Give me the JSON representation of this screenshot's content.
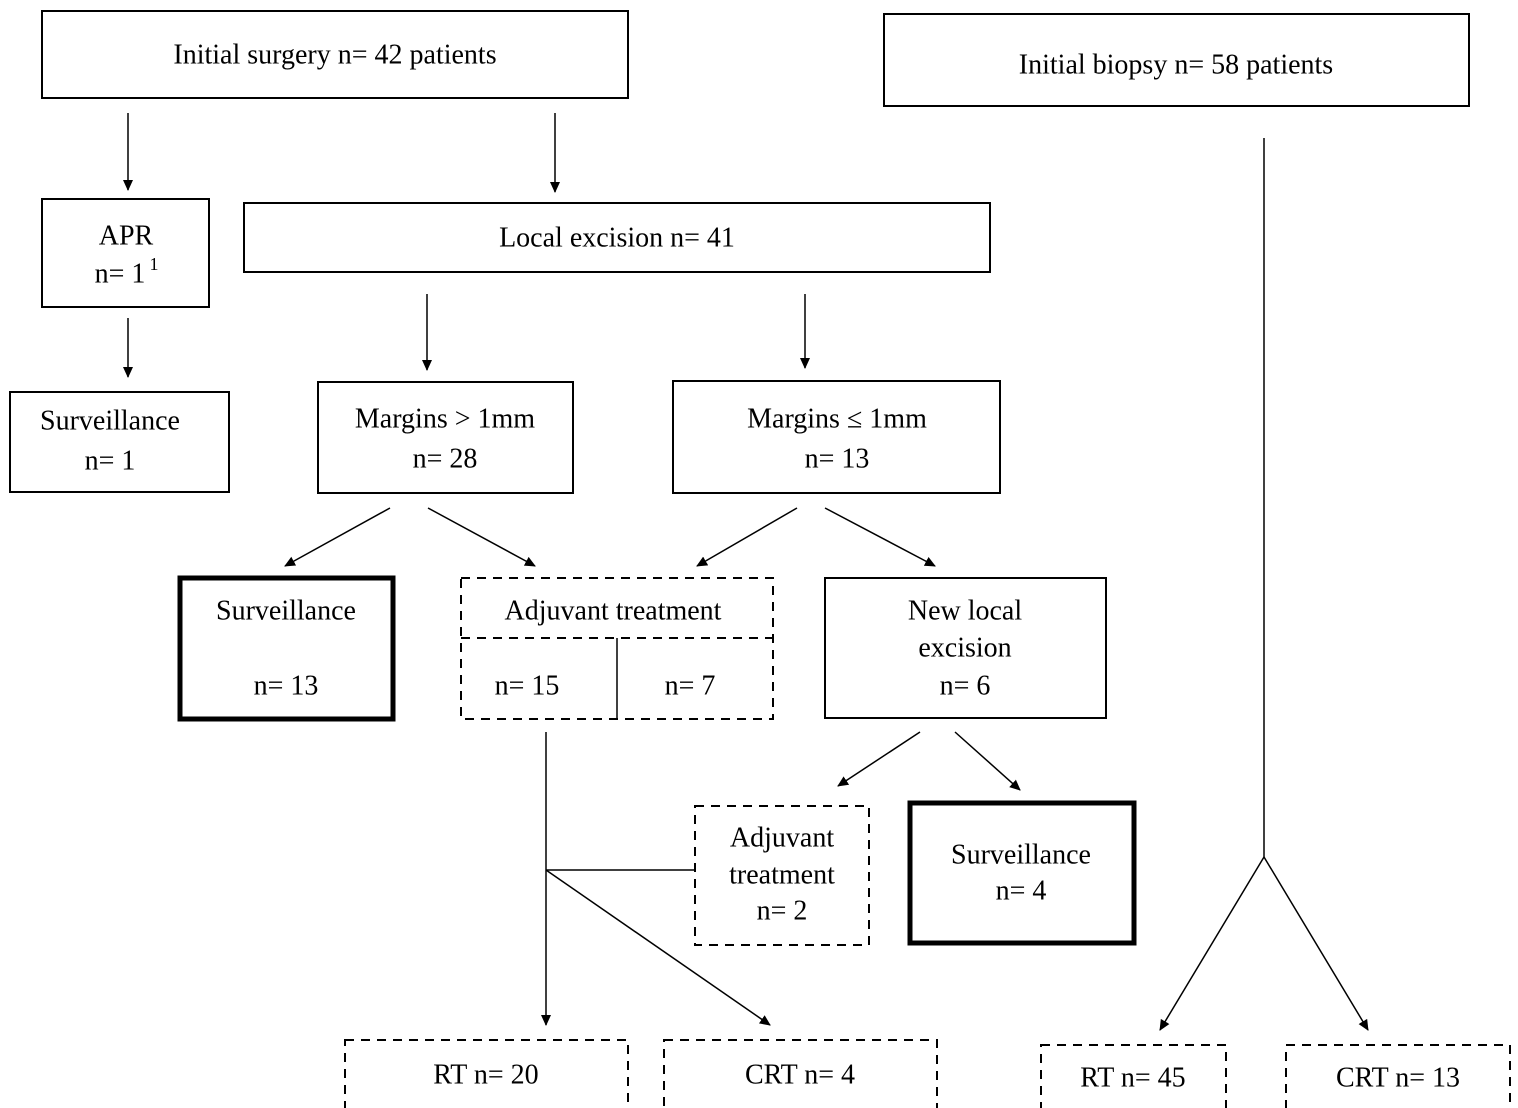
{
  "nodes": [
    {
      "lines": [
        "Initial surgery n= 42 patients"
      ]
    },
    {
      "lines": [
        "Initial biopsy n= 58 patients"
      ]
    },
    {
      "lines": [
        "APR",
        "n= 1"
      ],
      "footnote": "1"
    },
    {
      "lines": [
        "Local excision n= 41"
      ]
    },
    {
      "lines": [
        "Surveillance",
        "n= 1"
      ]
    },
    {
      "lines": [
        "Margins > 1mm",
        "n= 28"
      ]
    },
    {
      "lines": [
        "Margins ≤ 1mm",
        "n= 13"
      ]
    },
    {
      "lines": [
        "Surveillance",
        "n= 13"
      ]
    },
    {
      "lines": [
        "Adjuvant treatment",
        "n= 15",
        "n= 7"
      ]
    },
    {
      "lines": [
        "New local",
        "excision",
        "n= 6"
      ]
    },
    {
      "lines": [
        "Adjuvant",
        "treatment",
        "n= 2"
      ]
    },
    {
      "lines": [
        "Surveillance",
        "n= 4"
      ]
    },
    {
      "lines": [
        "RT n= 20"
      ]
    },
    {
      "lines": [
        "CRT n= 4"
      ]
    },
    {
      "lines": [
        "RT n= 45"
      ]
    },
    {
      "lines": [
        "CRT n= 13"
      ]
    }
  ]
}
